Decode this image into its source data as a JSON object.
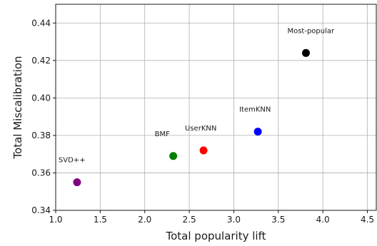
{
  "chart_data": {
    "type": "scatter",
    "xlabel": "Total popularity lift",
    "ylabel": "Total Miscalibration",
    "xlim": [
      1.0,
      4.6
    ],
    "ylim": [
      0.34,
      0.45
    ],
    "xticks": [
      1.0,
      1.5,
      2.0,
      2.5,
      3.0,
      3.5,
      4.0,
      4.5
    ],
    "xtick_labels": [
      "1.0",
      "1.5",
      "2.0",
      "2.5",
      "3.0",
      "3.5",
      "4.0",
      "4.5"
    ],
    "yticks": [
      0.34,
      0.36,
      0.38,
      0.4,
      0.42,
      0.44
    ],
    "ytick_labels": [
      "0.34",
      "0.36",
      "0.38",
      "0.40",
      "0.42",
      "0.44"
    ],
    "grid": true,
    "points": [
      {
        "label": "SVD++",
        "x": 1.24,
        "y": 0.355,
        "color": "#800080"
      },
      {
        "label": "BMF",
        "x": 2.32,
        "y": 0.369,
        "color": "#008000"
      },
      {
        "label": "UserKNN",
        "x": 2.66,
        "y": 0.372,
        "color": "#ff0000"
      },
      {
        "label": "ItemKNN",
        "x": 3.27,
        "y": 0.382,
        "color": "#0000ff"
      },
      {
        "label": "Most-popular",
        "x": 3.81,
        "y": 0.424,
        "color": "#000000"
      }
    ]
  }
}
